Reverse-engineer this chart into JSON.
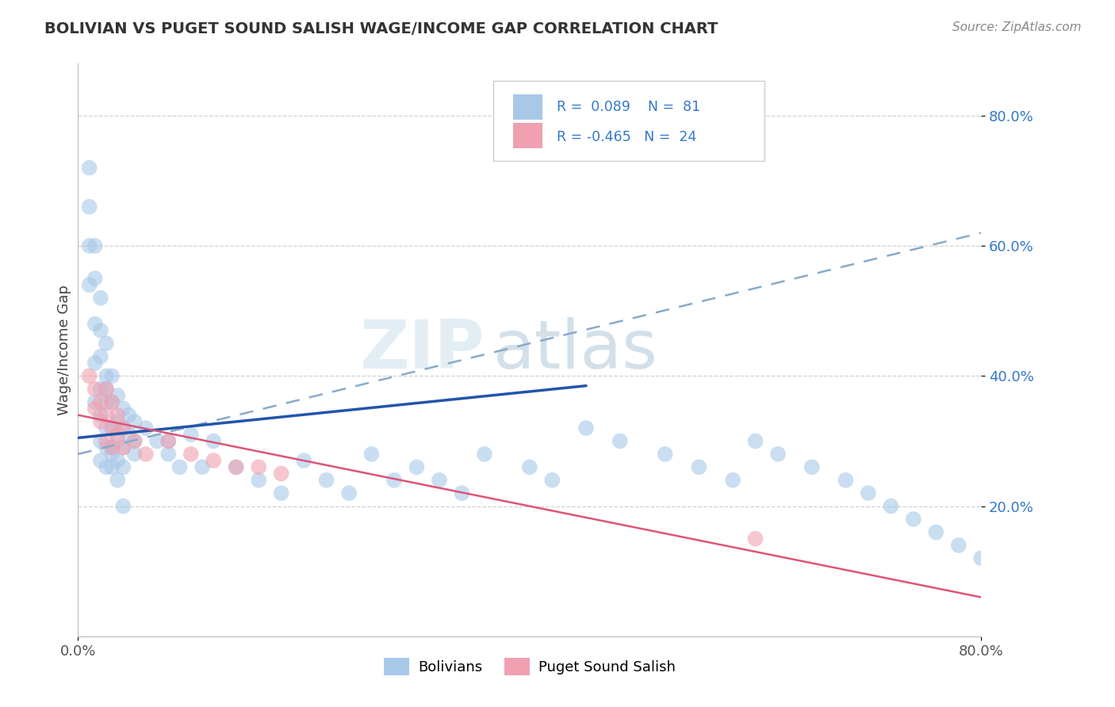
{
  "title": "BOLIVIAN VS PUGET SOUND SALISH WAGE/INCOME GAP CORRELATION CHART",
  "source": "Source: ZipAtlas.com",
  "ylabel": "Wage/Income Gap",
  "bolivian_color": "#a8c8e8",
  "salish_color": "#f0a0b0",
  "bolivian_R": 0.089,
  "bolivian_N": 81,
  "salish_R": -0.465,
  "salish_N": 24,
  "blue_line_color": "#2255aa",
  "pink_line_color": "#dd5577",
  "dashed_line_color": "#88aacc",
  "legend_r_color": "#3377cc",
  "background_color": "#ffffff",
  "grid_color": "#cccccc",
  "watermark_zip": "ZIP",
  "watermark_atlas": "atlas",
  "xlim": [
    0.0,
    0.8
  ],
  "ylim": [
    0.0,
    0.88
  ],
  "ytick_positions": [
    0.2,
    0.4,
    0.6,
    0.8
  ],
  "ytick_labels": [
    "20.0%",
    "40.0%",
    "60.0%",
    "80.0%"
  ],
  "xtick_positions": [
    0.0,
    0.8
  ],
  "xtick_labels": [
    "0.0%",
    "80.0%"
  ],
  "blue_line_x": [
    0.0,
    0.45
  ],
  "blue_line_y_start": 0.305,
  "blue_line_y_end": 0.385,
  "dashed_line_x": [
    0.0,
    0.8
  ],
  "dashed_line_y_start": 0.28,
  "dashed_line_y_end": 0.62,
  "pink_line_x": [
    0.0,
    0.8
  ],
  "pink_line_y_start": 0.34,
  "pink_line_y_end": 0.06,
  "bolivian_points_x": [
    0.01,
    0.01,
    0.01,
    0.01,
    0.015,
    0.015,
    0.015,
    0.015,
    0.015,
    0.02,
    0.02,
    0.02,
    0.02,
    0.02,
    0.02,
    0.02,
    0.025,
    0.025,
    0.025,
    0.025,
    0.025,
    0.025,
    0.03,
    0.03,
    0.03,
    0.03,
    0.03,
    0.035,
    0.035,
    0.035,
    0.035,
    0.04,
    0.04,
    0.04,
    0.04,
    0.045,
    0.045,
    0.05,
    0.05,
    0.05,
    0.06,
    0.07,
    0.08,
    0.08,
    0.09,
    0.1,
    0.11,
    0.12,
    0.14,
    0.16,
    0.18,
    0.2,
    0.22,
    0.24,
    0.26,
    0.28,
    0.3,
    0.32,
    0.34,
    0.36,
    0.4,
    0.42,
    0.45,
    0.48,
    0.52,
    0.55,
    0.58,
    0.6,
    0.62,
    0.65,
    0.68,
    0.7,
    0.72,
    0.74,
    0.76,
    0.78,
    0.8,
    0.025,
    0.03,
    0.035,
    0.04
  ],
  "bolivian_points_y": [
    0.72,
    0.66,
    0.6,
    0.54,
    0.6,
    0.55,
    0.48,
    0.42,
    0.36,
    0.52,
    0.47,
    0.43,
    0.38,
    0.34,
    0.3,
    0.27,
    0.45,
    0.4,
    0.36,
    0.32,
    0.29,
    0.26,
    0.4,
    0.36,
    0.32,
    0.29,
    0.26,
    0.37,
    0.33,
    0.3,
    0.27,
    0.35,
    0.32,
    0.29,
    0.26,
    0.34,
    0.31,
    0.33,
    0.3,
    0.28,
    0.32,
    0.3,
    0.3,
    0.28,
    0.26,
    0.31,
    0.26,
    0.3,
    0.26,
    0.24,
    0.22,
    0.27,
    0.24,
    0.22,
    0.28,
    0.24,
    0.26,
    0.24,
    0.22,
    0.28,
    0.26,
    0.24,
    0.32,
    0.3,
    0.28,
    0.26,
    0.24,
    0.3,
    0.28,
    0.26,
    0.24,
    0.22,
    0.2,
    0.18,
    0.16,
    0.14,
    0.12,
    0.38,
    0.28,
    0.24,
    0.2
  ],
  "salish_points_x": [
    0.01,
    0.015,
    0.015,
    0.02,
    0.02,
    0.025,
    0.025,
    0.025,
    0.03,
    0.03,
    0.03,
    0.035,
    0.035,
    0.04,
    0.04,
    0.05,
    0.06,
    0.08,
    0.1,
    0.12,
    0.14,
    0.16,
    0.18,
    0.6
  ],
  "salish_points_y": [
    0.4,
    0.38,
    0.35,
    0.36,
    0.33,
    0.38,
    0.34,
    0.3,
    0.36,
    0.32,
    0.29,
    0.34,
    0.31,
    0.32,
    0.29,
    0.3,
    0.28,
    0.3,
    0.28,
    0.27,
    0.26,
    0.26,
    0.25,
    0.15
  ]
}
